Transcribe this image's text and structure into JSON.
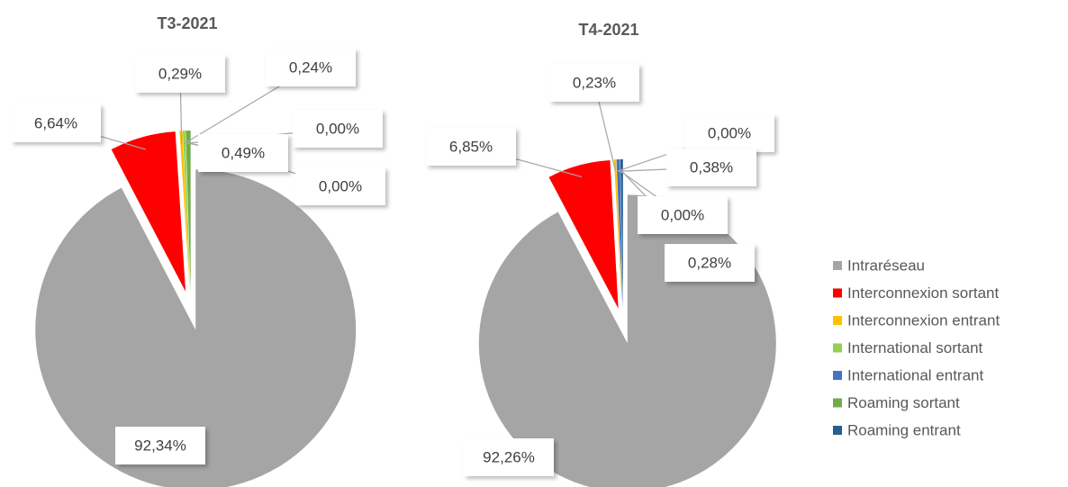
{
  "chart_data": [
    {
      "type": "pie",
      "title": "T3-2021",
      "categories": [
        "Intraréseau",
        "Interconnexion sortant",
        "Interconnexion entrant",
        "International sortant",
        "International entrant",
        "Roaming sortant",
        "Roaming entrant"
      ],
      "values": [
        92.34,
        6.64,
        0.29,
        0.24,
        0.0,
        0.49,
        0.0
      ],
      "value_labels": [
        "92,34%",
        "6,64%",
        "0,29%",
        "0,24%",
        "0,00%",
        "0,49%",
        "0,00%"
      ],
      "colors": [
        "#a5a5a5",
        "#ff0000",
        "#ffc000",
        "#92d050",
        "#4472c4",
        "#70ad47",
        "#255e91"
      ]
    },
    {
      "type": "pie",
      "title": "T4-2021",
      "categories": [
        "Intraréseau",
        "Interconnexion sortant",
        "Interconnexion entrant",
        "International sortant",
        "International entrant",
        "Roaming sortant",
        "Roaming entrant"
      ],
      "values": [
        92.26,
        6.85,
        0.23,
        0.0,
        0.38,
        0.0,
        0.28
      ],
      "value_labels": [
        "92,26%",
        "6,85%",
        "0,23%",
        "0,00%",
        "0,38%",
        "0,00%",
        "0,28%"
      ],
      "colors": [
        "#a5a5a5",
        "#ff0000",
        "#ffc000",
        "#92d050",
        "#4472c4",
        "#70ad47",
        "#255e91"
      ],
      "legend": "right"
    }
  ]
}
